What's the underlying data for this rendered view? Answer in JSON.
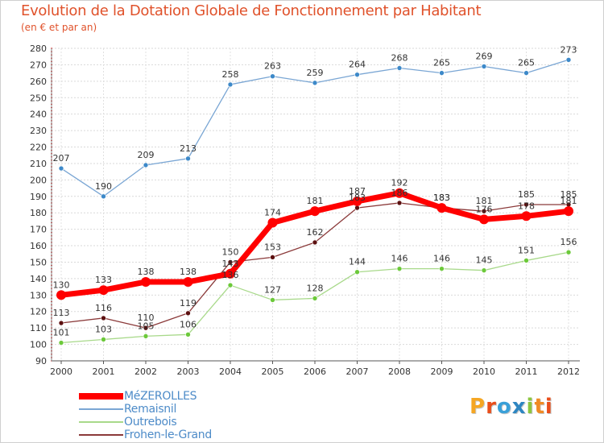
{
  "header": {
    "title": "Evolution de la Dotation Globale de Fonctionnement par Habitant",
    "subtitle": "(en € et par an)"
  },
  "brand": {
    "letters": [
      "P",
      "r",
      "o",
      "x",
      "i",
      "t",
      "i"
    ],
    "colors": [
      "#f5a623",
      "#e94e1b",
      "#3aa0d8",
      "#2e86c1",
      "#8cc63f",
      "#f08a24",
      "#e94e1b"
    ]
  },
  "chart_data": {
    "type": "line",
    "title": "Evolution de la Dotation Globale de Fonctionnement par Habitant",
    "subtitle": "(en € et par an)",
    "xlabel": "",
    "ylabel": "",
    "ylim": [
      90,
      280
    ],
    "ytick_step": 10,
    "yticks": [
      "90",
      "100",
      "110",
      "120",
      "130",
      "140",
      "150",
      "160",
      "170",
      "180",
      "190",
      "200",
      "210",
      "220",
      "230",
      "240",
      "250",
      "260",
      "270",
      "280"
    ],
    "categories": [
      "2000",
      "2001",
      "2002",
      "2003",
      "2004",
      "2005",
      "2006",
      "2007",
      "2008",
      "2009",
      "2010",
      "2011",
      "2012"
    ],
    "grid": true,
    "legend_position": "bottom-left",
    "series": [
      {
        "name": "MéZEROLLES",
        "color": "#ff0000",
        "marker_color": "#ff0000",
        "thick": true,
        "values": [
          130,
          133,
          138,
          138,
          143,
          174,
          181,
          187,
          192,
          183,
          176,
          178,
          181
        ],
        "labels": [
          "130",
          "133",
          "138",
          "138",
          "143",
          "174",
          "181",
          "187",
          "192",
          "183",
          "176",
          "178",
          "181"
        ]
      },
      {
        "name": "Remaisnil",
        "color": "#7aa6d4",
        "marker_color": "#3d89c9",
        "thick": false,
        "values": [
          207,
          190,
          209,
          213,
          258,
          263,
          259,
          264,
          268,
          265,
          269,
          265,
          273
        ],
        "labels": [
          "207",
          "190",
          "209",
          "213",
          "258",
          "263",
          "259",
          "264",
          "268",
          "265",
          "269",
          "265",
          "273"
        ]
      },
      {
        "name": "Outrebois",
        "color": "#a8d98a",
        "marker_color": "#6cc93a",
        "thick": false,
        "values": [
          101,
          103,
          105,
          106,
          136,
          127,
          128,
          144,
          146,
          146,
          145,
          151,
          156
        ],
        "labels": [
          "101",
          "103",
          "105",
          "106",
          "136",
          "127",
          "128",
          "144",
          "146",
          "146",
          "145",
          "151",
          "156"
        ]
      },
      {
        "name": "Frohen-le-Grand",
        "color": "#8b3a3a",
        "marker_color": "#5c1010",
        "thick": false,
        "values": [
          113,
          116,
          110,
          119,
          150,
          153,
          162,
          183,
          186,
          183,
          181,
          185,
          185
        ],
        "labels": [
          "113",
          "116",
          "110",
          "119",
          "150",
          "153",
          "162",
          "183",
          "186",
          "183",
          "181",
          "185",
          "185"
        ]
      }
    ]
  }
}
